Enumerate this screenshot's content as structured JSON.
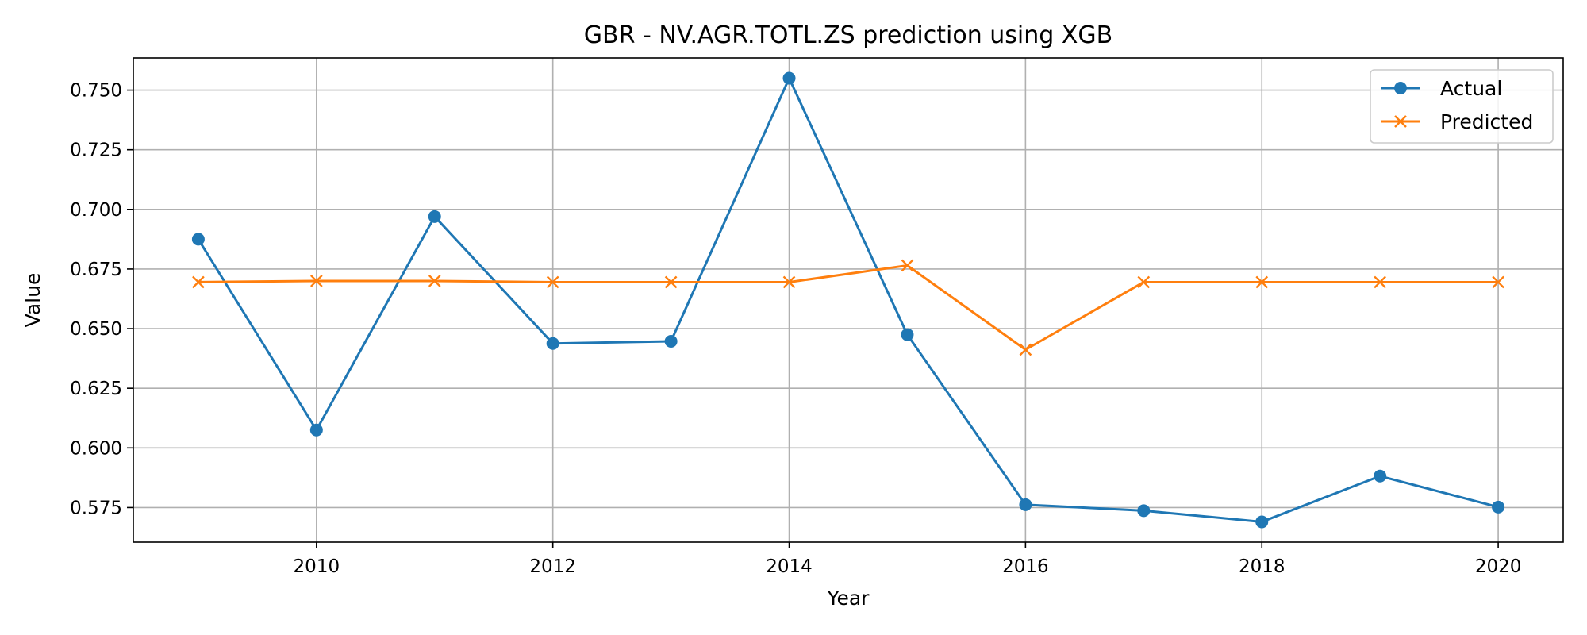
{
  "chart_data": {
    "type": "line",
    "title": "GBR - NV.AGR.TOTL.ZS prediction using XGB",
    "xlabel": "Year",
    "ylabel": "Value",
    "x": [
      2009,
      2010,
      2011,
      2012,
      2013,
      2014,
      2015,
      2016,
      2017,
      2018,
      2019,
      2020
    ],
    "xlim": [
      2008.45,
      2020.55
    ],
    "ylim": [
      0.5605,
      0.7635
    ],
    "xticks": [
      2010,
      2012,
      2014,
      2016,
      2018,
      2020
    ],
    "yticks": [
      0.575,
      0.6,
      0.625,
      0.65,
      0.675,
      0.7,
      0.725,
      0.75
    ],
    "grid": true,
    "legend_position": "top-right",
    "series": [
      {
        "name": "Actual",
        "color": "#1f77b4",
        "marker": "circle",
        "values": [
          0.6875,
          0.6075,
          0.697,
          0.6438,
          0.6447,
          0.755,
          0.6475,
          0.5762,
          0.5737,
          0.569,
          0.5882,
          0.5752
        ]
      },
      {
        "name": "Predicted",
        "color": "#ff7f0e",
        "marker": "x",
        "values": [
          0.6695,
          0.67,
          0.67,
          0.6695,
          0.6695,
          0.6695,
          0.6765,
          0.6412,
          0.6695,
          0.6695,
          0.6695,
          0.6695
        ]
      }
    ]
  }
}
